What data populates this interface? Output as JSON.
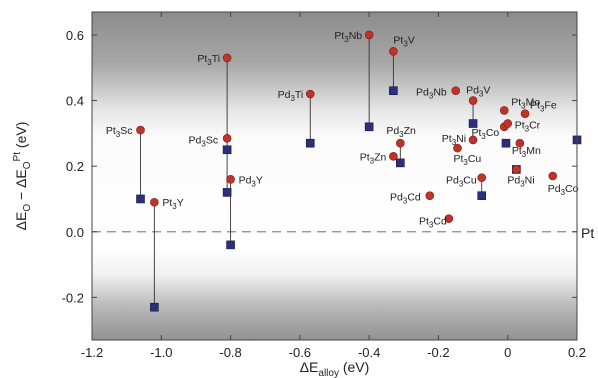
{
  "chart_data": {
    "type": "scatter",
    "xlabel": "ΔE_alloy (eV)",
    "ylabel": "ΔE_O − ΔE_O^Pt (eV)",
    "xlim": [
      -1.2,
      0.2
    ],
    "ylim": [
      -0.33,
      0.67
    ],
    "xticks": [
      "-1.2",
      "-1.0",
      "-0.8",
      "-0.6",
      "-0.4",
      "-0.2",
      "0",
      "0.2"
    ],
    "yticks": [
      "-0.2",
      "0.0",
      "0.2",
      "0.4",
      "0.6"
    ],
    "reference_line": {
      "y": 0.0,
      "label": "Pt"
    },
    "background": "vertical gradient: white at ΔE = 0, grey at top and bottom",
    "series": [
      {
        "marker": "circle",
        "color": "#c0332b",
        "points": [
          {
            "label": "Pt3Sc",
            "x": -1.06,
            "y": 0.31
          },
          {
            "label": "Pt3Y",
            "x": -1.02,
            "y": 0.09
          },
          {
            "label": "Pt3Ti",
            "x": -0.81,
            "y": 0.53
          },
          {
            "label": "Pd3Sc",
            "x": -0.81,
            "y": 0.285
          },
          {
            "label": "Pd3Y",
            "x": -0.8,
            "y": 0.16
          },
          {
            "label": "Pd3Ti",
            "x": -0.57,
            "y": 0.42
          },
          {
            "label": "Pt3Nb",
            "x": -0.4,
            "y": 0.6
          },
          {
            "label": "Pt3V",
            "x": -0.33,
            "y": 0.55
          },
          {
            "label": "Pd3Zn",
            "x": -0.31,
            "y": 0.27
          },
          {
            "label": "Pt3Zn",
            "x": -0.33,
            "y": 0.23
          },
          {
            "label": "Pd3Cd",
            "x": -0.225,
            "y": 0.11
          },
          {
            "label": "Pt3Cd",
            "x": -0.17,
            "y": 0.04
          },
          {
            "label": "Pd3Nb",
            "x": -0.15,
            "y": 0.43
          },
          {
            "label": "Pd3V",
            "x": -0.1,
            "y": 0.4
          },
          {
            "label": "Pt3Ni",
            "x": -0.1,
            "y": 0.28
          },
          {
            "label": "Pt3Cu",
            "x": -0.145,
            "y": 0.255
          },
          {
            "label": "Pd3Cu",
            "x": -0.075,
            "y": 0.165
          },
          {
            "label": "Pt3Co",
            "x": -0.01,
            "y": 0.32
          },
          {
            "label": "Pt3Mo",
            "x": -0.01,
            "y": 0.37
          },
          {
            "label": "Pt3Cr",
            "x": 0.0,
            "y": 0.33
          },
          {
            "label": "Pt3Fe",
            "x": 0.05,
            "y": 0.36
          },
          {
            "label": "Pt3Mn",
            "x": 0.035,
            "y": 0.27
          },
          {
            "label": "Pd3Ni",
            "x": 0.025,
            "y": 0.19
          },
          {
            "label": "Pd3Co",
            "x": 0.13,
            "y": 0.17
          }
        ]
      },
      {
        "marker": "square",
        "color": "#2c2f7a",
        "points": [
          {
            "x": -1.06,
            "y": 0.1
          },
          {
            "x": -1.02,
            "y": -0.23
          },
          {
            "x": -0.81,
            "y": 0.25
          },
          {
            "x": -0.81,
            "y": 0.12
          },
          {
            "x": -0.8,
            "y": -0.04
          },
          {
            "x": -0.57,
            "y": 0.27
          },
          {
            "x": -0.4,
            "y": 0.32
          },
          {
            "x": -0.33,
            "y": 0.43
          },
          {
            "x": -0.31,
            "y": 0.21
          },
          {
            "x": -0.1,
            "y": 0.33
          },
          {
            "x": -0.075,
            "y": 0.11
          },
          {
            "x": -0.005,
            "y": 0.27
          },
          {
            "x": 0.025,
            "y": 0.19
          },
          {
            "x": 0.2,
            "y": 0.28
          }
        ]
      }
    ],
    "connectors": [
      {
        "x": -1.06,
        "y1": 0.31,
        "y2": 0.1
      },
      {
        "x": -1.02,
        "y1": 0.09,
        "y2": -0.23
      },
      {
        "x": -0.81,
        "y1": 0.53,
        "y2": 0.12
      },
      {
        "x": -0.8,
        "y1": 0.16,
        "y2": -0.04
      },
      {
        "x": -0.57,
        "y1": 0.42,
        "y2": 0.27
      },
      {
        "x": -0.4,
        "y1": 0.6,
        "y2": 0.32
      },
      {
        "x": -0.33,
        "y1": 0.55,
        "y2": 0.43
      },
      {
        "x": -0.31,
        "y1": 0.27,
        "y2": 0.21
      },
      {
        "x": -0.1,
        "y1": 0.4,
        "y2": 0.33
      },
      {
        "x": -0.075,
        "y1": 0.165,
        "y2": 0.11
      }
    ]
  }
}
